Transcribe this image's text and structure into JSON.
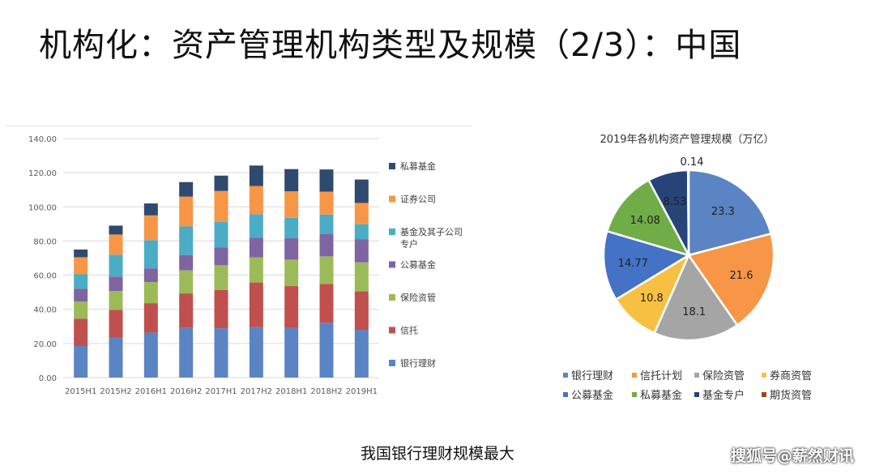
{
  "slide": {
    "title": "机构化：资产管理机构类型及规模（2/3）：中国",
    "caption": "我国银行理财规模最大",
    "watermark": "搜狐号@薪然财讯"
  },
  "colors": {
    "bank": "#5b84c4",
    "trust": "#c0504d",
    "insurance": "#9bbb59",
    "public_fund": "#7f64a2",
    "fund_sub": "#4bacc6",
    "securities": "#f79646",
    "private_fund": "#2f4a6e"
  },
  "chart_data": [
    {
      "type": "bar",
      "stacked": true,
      "categories": [
        "2015H1",
        "2015H2",
        "2016H1",
        "2016H2",
        "2017H1",
        "2017H2",
        "2018H1",
        "2018H2",
        "2019H1"
      ],
      "ylim": [
        0,
        140
      ],
      "yticks": [
        "0.00",
        "20.00",
        "40.00",
        "60.00",
        "80.00",
        "100.00",
        "120.00",
        "140.00"
      ],
      "grid": true,
      "legend_position": "right",
      "series": [
        {
          "name": "银行理财",
          "color_key": "bank",
          "values": [
            18.5,
            23.5,
            26.3,
            29.1,
            28.9,
            29.5,
            29.0,
            32.1,
            28.0
          ]
        },
        {
          "name": "信托",
          "color_key": "trust",
          "values": [
            16.0,
            16.2,
            17.3,
            20.2,
            22.4,
            26.2,
            24.6,
            22.7,
            22.5
          ]
        },
        {
          "name": "保险资管",
          "color_key": "insurance",
          "values": [
            10.0,
            11.0,
            12.4,
            13.5,
            14.5,
            14.7,
            15.5,
            16.2,
            17.0
          ]
        },
        {
          "name": "公募基金",
          "color_key": "public_fund",
          "values": [
            7.5,
            8.5,
            8.0,
            9.0,
            10.5,
            11.5,
            12.5,
            13.0,
            13.6
          ]
        },
        {
          "name": "基金及其子公司专户",
          "color_key": "fund_sub",
          "values": [
            8.5,
            12.8,
            16.5,
            16.7,
            14.8,
            13.8,
            12.0,
            11.5,
            8.7
          ]
        },
        {
          "name": "证券公司",
          "color_key": "securities",
          "values": [
            10.0,
            11.8,
            14.5,
            17.5,
            18.2,
            16.5,
            15.5,
            13.4,
            12.5
          ]
        },
        {
          "name": "私募基金",
          "color_key": "private_fund",
          "values": [
            4.5,
            5.2,
            7.0,
            8.5,
            9.0,
            12.0,
            13.0,
            13.0,
            13.7
          ]
        }
      ],
      "legend_order": [
        "私募基金",
        "证券公司",
        "基金及其子公司专户",
        "公募基金",
        "保险资管",
        "信托",
        "银行理财"
      ]
    },
    {
      "type": "pie",
      "title": "2019年各机构资产管理规模（万亿）",
      "legend_position": "bottom",
      "slices": [
        {
          "name": "银行理财",
          "value": 23.3,
          "label": "23.3",
          "color_key": "bank"
        },
        {
          "name": "信托计划",
          "value": 21.6,
          "label": "21.6",
          "color_key": "securities"
        },
        {
          "name": "保险资管",
          "value": 18.1,
          "label": "18.1",
          "color": "#a5a5a5"
        },
        {
          "name": "券商资管",
          "value": 10.8,
          "label": "10.8",
          "color": "#f6c143"
        },
        {
          "name": "公募基金",
          "value": 14.77,
          "label": "14.77",
          "color": "#4472c4"
        },
        {
          "name": "私募基金",
          "value": 14.08,
          "label": "14.08",
          "color": "#70ad47"
        },
        {
          "name": "基金专户",
          "value": 8.53,
          "label": "8.53",
          "color": "#264478"
        },
        {
          "name": "期货资管",
          "value": 0.14,
          "label": "0.14",
          "color": "#9e480e"
        }
      ]
    }
  ]
}
